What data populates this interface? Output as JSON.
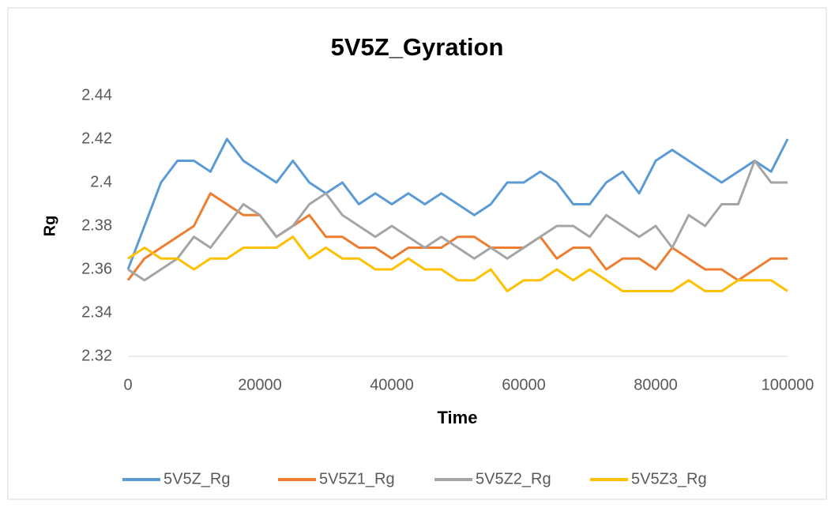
{
  "chart_data": {
    "type": "line",
    "title": "5V5Z_Gyration",
    "x_label": "Time",
    "y_label": "Rg",
    "x": [
      0,
      2500,
      5000,
      7500,
      10000,
      12500,
      15000,
      17500,
      20000,
      22500,
      25000,
      27500,
      30000,
      32500,
      35000,
      37500,
      40000,
      42500,
      45000,
      47500,
      50000,
      52500,
      55000,
      57500,
      60000,
      62500,
      65000,
      67500,
      70000,
      72500,
      75000,
      77500,
      80000,
      82500,
      85000,
      87500,
      90000,
      92500,
      95000,
      97500,
      100000
    ],
    "series": [
      {
        "name": "5V5Z_Rg",
        "color": "#5b9bd5",
        "values": [
          2.36,
          2.38,
          2.4,
          2.41,
          2.41,
          2.405,
          2.42,
          2.41,
          2.405,
          2.4,
          2.41,
          2.4,
          2.395,
          2.4,
          2.39,
          2.395,
          2.39,
          2.395,
          2.39,
          2.395,
          2.39,
          2.385,
          2.39,
          2.4,
          2.4,
          2.405,
          2.4,
          2.39,
          2.39,
          2.4,
          2.405,
          2.395,
          2.41,
          2.415,
          2.41,
          2.405,
          2.4,
          2.405,
          2.41,
          2.405,
          2.42
        ]
      },
      {
        "name": "5V5Z1_Rg",
        "color": "#ed7d31",
        "values": [
          2.355,
          2.365,
          2.37,
          2.375,
          2.38,
          2.395,
          2.39,
          2.385,
          2.385,
          2.375,
          2.38,
          2.385,
          2.375,
          2.375,
          2.37,
          2.37,
          2.365,
          2.37,
          2.37,
          2.37,
          2.375,
          2.375,
          2.37,
          2.37,
          2.37,
          2.375,
          2.365,
          2.37,
          2.37,
          2.36,
          2.365,
          2.365,
          2.36,
          2.37,
          2.365,
          2.36,
          2.36,
          2.355,
          2.36,
          2.365,
          2.365
        ]
      },
      {
        "name": "5V5Z2_Rg",
        "color": "#a5a5a5",
        "values": [
          2.36,
          2.355,
          2.36,
          2.365,
          2.375,
          2.37,
          2.38,
          2.39,
          2.385,
          2.375,
          2.38,
          2.39,
          2.395,
          2.385,
          2.38,
          2.375,
          2.38,
          2.375,
          2.37,
          2.375,
          2.37,
          2.365,
          2.37,
          2.365,
          2.37,
          2.375,
          2.38,
          2.38,
          2.375,
          2.385,
          2.38,
          2.375,
          2.38,
          2.37,
          2.385,
          2.38,
          2.39,
          2.39,
          2.41,
          2.4,
          2.4
        ]
      },
      {
        "name": "5V5Z3_Rg",
        "color": "#ffc000",
        "values": [
          2.365,
          2.37,
          2.365,
          2.365,
          2.36,
          2.365,
          2.365,
          2.37,
          2.37,
          2.37,
          2.375,
          2.365,
          2.37,
          2.365,
          2.365,
          2.36,
          2.36,
          2.365,
          2.36,
          2.36,
          2.355,
          2.355,
          2.36,
          2.35,
          2.355,
          2.355,
          2.36,
          2.355,
          2.36,
          2.355,
          2.35,
          2.35,
          2.35,
          2.35,
          2.355,
          2.35,
          2.35,
          2.355,
          2.355,
          2.355,
          2.35
        ]
      }
    ],
    "xlim": [
      0,
      100000
    ],
    "xticks": [
      0,
      20000,
      40000,
      60000,
      80000,
      100000
    ],
    "ylim": [
      2.32,
      2.44
    ],
    "yticks": [
      2.32,
      2.34,
      2.36,
      2.38,
      2.4,
      2.42,
      2.44
    ],
    "grid": false,
    "legend": "bottom"
  }
}
